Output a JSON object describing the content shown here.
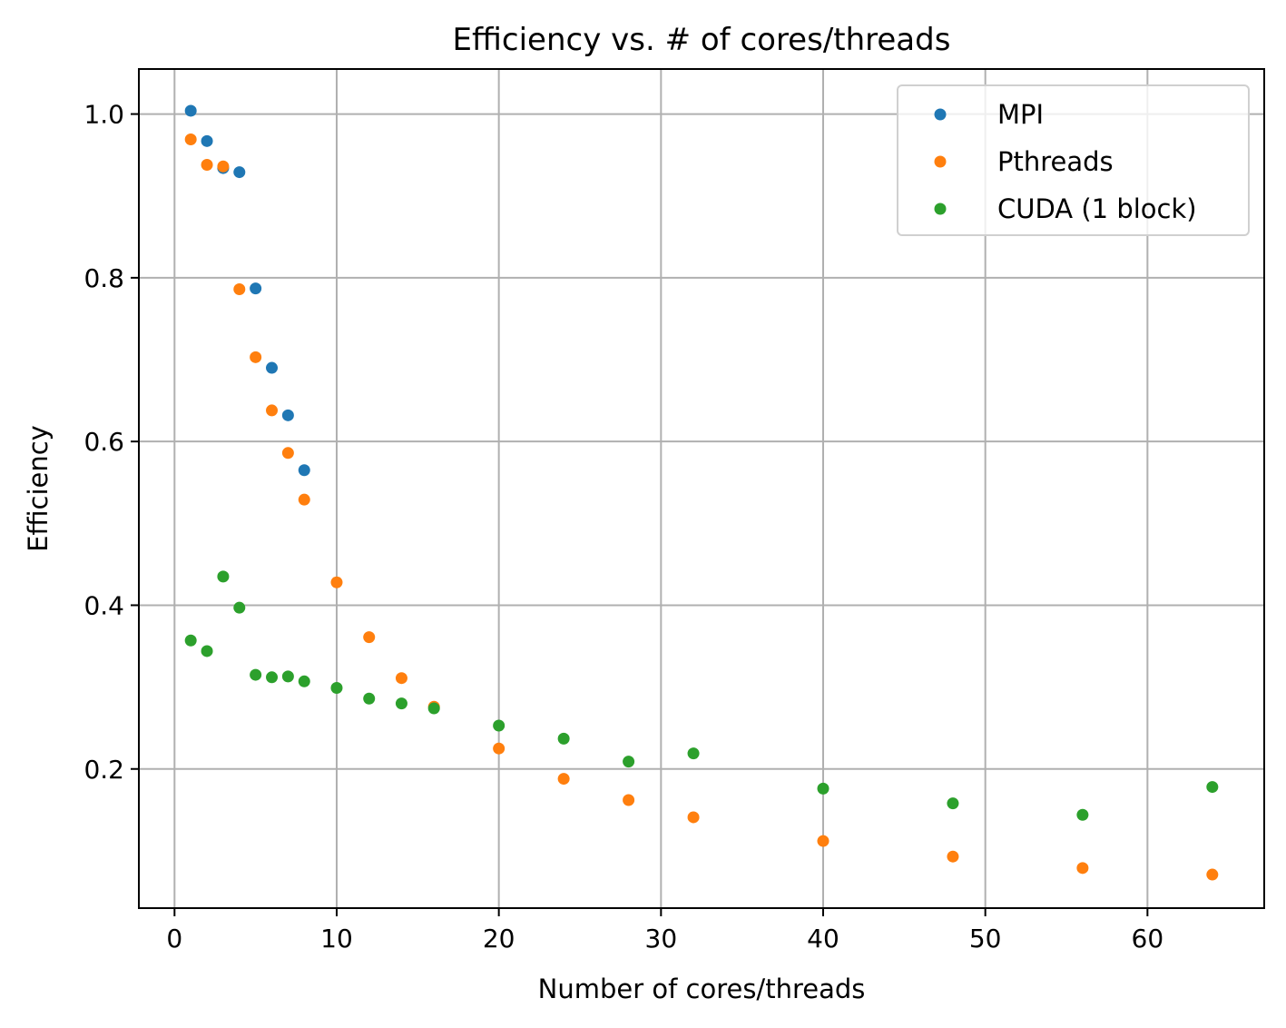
{
  "chart_data": {
    "type": "scatter",
    "title": "Efficiency vs. # of cores/threads",
    "xlabel": "Number of cores/threads",
    "ylabel": "Efficiency",
    "xlim": [
      -2.2,
      67.2
    ],
    "ylim": [
      0.03,
      1.055
    ],
    "xticks": [
      0,
      10,
      20,
      30,
      40,
      50,
      60
    ],
    "xtick_labels": [
      "0",
      "10",
      "20",
      "30",
      "40",
      "50",
      "60"
    ],
    "yticks": [
      0.2,
      0.4,
      0.6,
      0.8,
      1.0
    ],
    "ytick_labels": [
      "0.2",
      "0.4",
      "0.6",
      "0.8",
      "1.0"
    ],
    "grid": true,
    "legend_position": "top-right",
    "series": [
      {
        "name": "MPI",
        "color": "#1f77b4",
        "x": [
          1,
          2,
          3,
          4,
          5,
          6,
          7,
          8
        ],
        "y": [
          1.004,
          0.967,
          0.934,
          0.929,
          0.787,
          0.69,
          0.632,
          0.565
        ]
      },
      {
        "name": "Pthreads",
        "color": "#ff7f0e",
        "x": [
          1,
          2,
          3,
          4,
          5,
          6,
          7,
          8,
          10,
          12,
          14,
          16,
          20,
          24,
          28,
          32,
          40,
          48,
          56,
          64
        ],
        "y": [
          0.969,
          0.938,
          0.936,
          0.786,
          0.703,
          0.638,
          0.586,
          0.529,
          0.428,
          0.361,
          0.311,
          0.276,
          0.225,
          0.188,
          0.162,
          0.141,
          0.112,
          0.093,
          0.079,
          0.071
        ]
      },
      {
        "name": "CUDA (1 block)",
        "color": "#2ca02c",
        "x": [
          1,
          2,
          3,
          4,
          5,
          6,
          7,
          8,
          10,
          12,
          14,
          16,
          20,
          24,
          28,
          32,
          40,
          48,
          56,
          64
        ],
        "y": [
          0.357,
          0.344,
          0.435,
          0.397,
          0.315,
          0.312,
          0.313,
          0.307,
          0.299,
          0.286,
          0.28,
          0.274,
          0.253,
          0.237,
          0.209,
          0.219,
          0.176,
          0.158,
          0.144,
          0.178
        ]
      }
    ]
  }
}
